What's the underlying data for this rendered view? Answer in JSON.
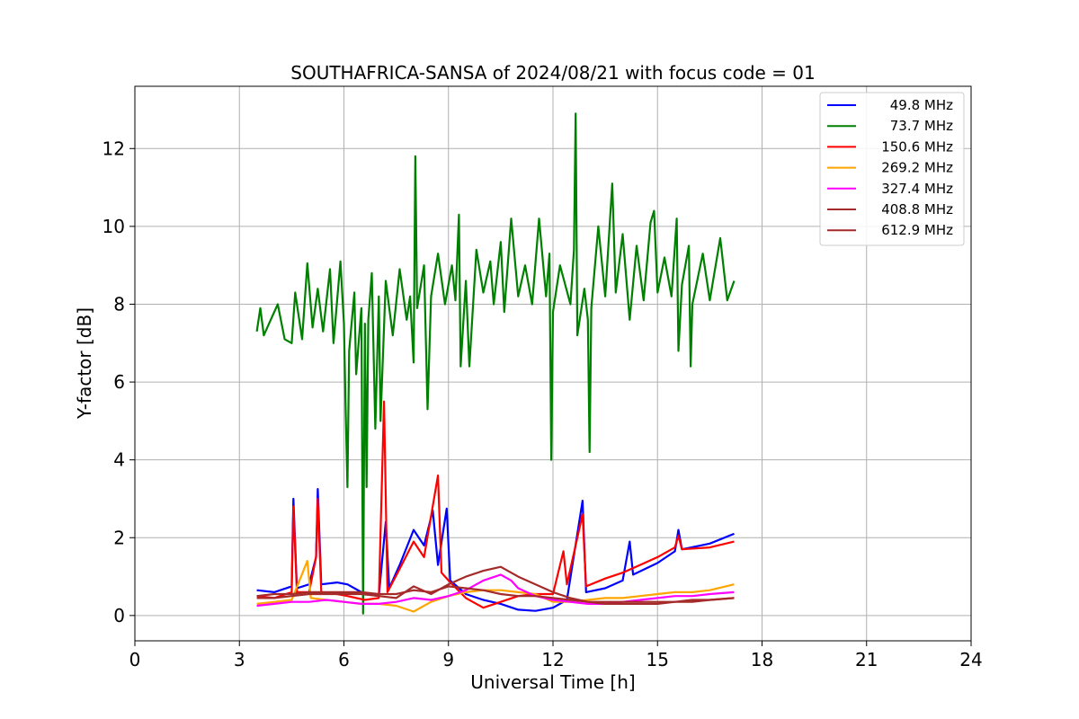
{
  "chart_data": {
    "type": "line",
    "title": "SOUTHAFRICA-SANSA of 2024/08/21 with focus code = 01",
    "xlabel": "Universal Time [h]",
    "ylabel": "Y-factor [dB]",
    "xlim": [
      0,
      24
    ],
    "ylim": [
      -0.65,
      13.6
    ],
    "xticks": [
      0,
      3,
      6,
      9,
      12,
      15,
      18,
      21,
      24
    ],
    "xtick_labels": [
      "0",
      "3",
      "6",
      "9",
      "12",
      "15",
      "18",
      "21",
      "24"
    ],
    "yticks": [
      0,
      2,
      4,
      6,
      8,
      10,
      12
    ],
    "ytick_labels": [
      "0",
      "2",
      "4",
      "6",
      "8",
      "10",
      "12"
    ],
    "grid": true,
    "legend_position": "top-right",
    "series": [
      {
        "name": "49.8 MHz",
        "color": "#0000ff",
        "points": [
          [
            3.5,
            0.65
          ],
          [
            4.0,
            0.6
          ],
          [
            4.5,
            0.75
          ],
          [
            4.55,
            3.0
          ],
          [
            4.65,
            0.7
          ],
          [
            5.0,
            0.8
          ],
          [
            5.2,
            1.5
          ],
          [
            5.25,
            3.25
          ],
          [
            5.35,
            0.8
          ],
          [
            5.8,
            0.85
          ],
          [
            6.1,
            0.8
          ],
          [
            6.6,
            0.55
          ],
          [
            7.0,
            0.5
          ],
          [
            7.2,
            2.4
          ],
          [
            7.3,
            0.7
          ],
          [
            7.6,
            1.3
          ],
          [
            8.0,
            2.2
          ],
          [
            8.3,
            1.8
          ],
          [
            8.55,
            2.7
          ],
          [
            8.7,
            1.3
          ],
          [
            8.95,
            2.75
          ],
          [
            9.05,
            0.9
          ],
          [
            9.5,
            0.55
          ],
          [
            10.0,
            0.4
          ],
          [
            10.5,
            0.3
          ],
          [
            11.0,
            0.15
          ],
          [
            11.5,
            0.12
          ],
          [
            12.0,
            0.2
          ],
          [
            12.4,
            0.4
          ],
          [
            12.85,
            2.95
          ],
          [
            12.95,
            0.6
          ],
          [
            13.5,
            0.7
          ],
          [
            14.0,
            0.9
          ],
          [
            14.2,
            1.9
          ],
          [
            14.3,
            1.05
          ],
          [
            15.0,
            1.35
          ],
          [
            15.5,
            1.65
          ],
          [
            15.6,
            2.2
          ],
          [
            15.7,
            1.7
          ],
          [
            16.5,
            1.85
          ],
          [
            17.2,
            2.1
          ]
        ]
      },
      {
        "name": "73.7 MHz",
        "color": "#008000",
        "points": [
          [
            3.5,
            7.3
          ],
          [
            3.6,
            7.9
          ],
          [
            3.7,
            7.2
          ],
          [
            3.9,
            7.6
          ],
          [
            4.1,
            8.0
          ],
          [
            4.3,
            7.1
          ],
          [
            4.5,
            7.0
          ],
          [
            4.6,
            8.3
          ],
          [
            4.8,
            7.1
          ],
          [
            4.95,
            9.05
          ],
          [
            5.1,
            7.4
          ],
          [
            5.25,
            8.4
          ],
          [
            5.4,
            7.3
          ],
          [
            5.6,
            8.9
          ],
          [
            5.7,
            7.0
          ],
          [
            5.9,
            9.1
          ],
          [
            6.0,
            7.5
          ],
          [
            6.05,
            5.3
          ],
          [
            6.1,
            3.3
          ],
          [
            6.15,
            6.8
          ],
          [
            6.3,
            8.3
          ],
          [
            6.35,
            6.2
          ],
          [
            6.5,
            7.9
          ],
          [
            6.55,
            0.05
          ],
          [
            6.6,
            7.5
          ],
          [
            6.65,
            3.3
          ],
          [
            6.7,
            7.6
          ],
          [
            6.8,
            8.8
          ],
          [
            6.9,
            4.8
          ],
          [
            7.0,
            8.2
          ],
          [
            7.05,
            5.0
          ],
          [
            7.2,
            8.6
          ],
          [
            7.4,
            7.2
          ],
          [
            7.6,
            8.9
          ],
          [
            7.8,
            7.6
          ],
          [
            7.9,
            8.2
          ],
          [
            8.0,
            6.5
          ],
          [
            8.05,
            11.8
          ],
          [
            8.1,
            7.9
          ],
          [
            8.3,
            9.0
          ],
          [
            8.4,
            5.3
          ],
          [
            8.5,
            8.2
          ],
          [
            8.7,
            9.3
          ],
          [
            8.9,
            8.0
          ],
          [
            9.1,
            9.0
          ],
          [
            9.2,
            8.1
          ],
          [
            9.3,
            10.3
          ],
          [
            9.35,
            6.4
          ],
          [
            9.5,
            8.6
          ],
          [
            9.6,
            6.4
          ],
          [
            9.8,
            9.4
          ],
          [
            10.0,
            8.3
          ],
          [
            10.2,
            9.1
          ],
          [
            10.3,
            8.0
          ],
          [
            10.5,
            9.6
          ],
          [
            10.6,
            7.8
          ],
          [
            10.8,
            10.2
          ],
          [
            11.0,
            8.2
          ],
          [
            11.2,
            9.0
          ],
          [
            11.4,
            8.0
          ],
          [
            11.6,
            10.2
          ],
          [
            11.8,
            8.2
          ],
          [
            11.9,
            9.3
          ],
          [
            11.95,
            4.0
          ],
          [
            12.0,
            7.8
          ],
          [
            12.2,
            9.0
          ],
          [
            12.5,
            8.0
          ],
          [
            12.6,
            9.4
          ],
          [
            12.65,
            12.9
          ],
          [
            12.7,
            7.2
          ],
          [
            12.9,
            8.4
          ],
          [
            13.0,
            7.6
          ],
          [
            13.05,
            4.2
          ],
          [
            13.1,
            7.9
          ],
          [
            13.3,
            10.0
          ],
          [
            13.5,
            8.2
          ],
          [
            13.7,
            11.1
          ],
          [
            13.8,
            8.3
          ],
          [
            14.0,
            9.8
          ],
          [
            14.2,
            7.6
          ],
          [
            14.4,
            9.5
          ],
          [
            14.6,
            8.1
          ],
          [
            14.8,
            10.1
          ],
          [
            14.9,
            10.4
          ],
          [
            15.0,
            8.3
          ],
          [
            15.2,
            9.2
          ],
          [
            15.4,
            8.2
          ],
          [
            15.55,
            10.2
          ],
          [
            15.6,
            6.8
          ],
          [
            15.7,
            8.5
          ],
          [
            15.9,
            9.5
          ],
          [
            15.95,
            6.4
          ],
          [
            16.0,
            8.0
          ],
          [
            16.3,
            9.3
          ],
          [
            16.5,
            8.1
          ],
          [
            16.8,
            9.7
          ],
          [
            17.0,
            8.1
          ],
          [
            17.2,
            8.6
          ]
        ]
      },
      {
        "name": "150.6 MHz",
        "color": "#ff0000",
        "points": [
          [
            3.5,
            0.5
          ],
          [
            4.0,
            0.45
          ],
          [
            4.5,
            0.6
          ],
          [
            4.55,
            2.8
          ],
          [
            4.65,
            0.6
          ],
          [
            5.0,
            0.6
          ],
          [
            5.2,
            1.5
          ],
          [
            5.25,
            3.0
          ],
          [
            5.35,
            0.6
          ],
          [
            5.8,
            0.55
          ],
          [
            6.1,
            0.5
          ],
          [
            6.6,
            0.4
          ],
          [
            7.0,
            0.45
          ],
          [
            7.15,
            5.5
          ],
          [
            7.25,
            0.6
          ],
          [
            7.6,
            1.2
          ],
          [
            8.0,
            1.9
          ],
          [
            8.3,
            1.5
          ],
          [
            8.7,
            3.6
          ],
          [
            8.8,
            1.1
          ],
          [
            9.0,
            0.9
          ],
          [
            9.5,
            0.45
          ],
          [
            10.0,
            0.2
          ],
          [
            10.5,
            0.35
          ],
          [
            11.0,
            0.5
          ],
          [
            11.5,
            0.55
          ],
          [
            12.0,
            0.55
          ],
          [
            12.3,
            1.65
          ],
          [
            12.4,
            0.8
          ],
          [
            12.85,
            2.6
          ],
          [
            12.95,
            0.75
          ],
          [
            13.5,
            0.95
          ],
          [
            14.0,
            1.1
          ],
          [
            14.5,
            1.3
          ],
          [
            15.0,
            1.5
          ],
          [
            15.5,
            1.75
          ],
          [
            15.6,
            2.05
          ],
          [
            15.7,
            1.7
          ],
          [
            16.5,
            1.75
          ],
          [
            17.2,
            1.9
          ]
        ]
      },
      {
        "name": "269.2 MHz",
        "color": "#ffa500",
        "points": [
          [
            3.5,
            0.3
          ],
          [
            4.0,
            0.35
          ],
          [
            4.5,
            0.4
          ],
          [
            4.95,
            1.4
          ],
          [
            5.05,
            0.45
          ],
          [
            5.5,
            0.4
          ],
          [
            6.0,
            0.35
          ],
          [
            6.5,
            0.3
          ],
          [
            7.0,
            0.3
          ],
          [
            7.5,
            0.25
          ],
          [
            8.0,
            0.1
          ],
          [
            8.5,
            0.35
          ],
          [
            9.0,
            0.5
          ],
          [
            9.5,
            0.6
          ],
          [
            10.0,
            0.65
          ],
          [
            10.5,
            0.65
          ],
          [
            11.0,
            0.6
          ],
          [
            11.5,
            0.55
          ],
          [
            12.0,
            0.35
          ],
          [
            12.5,
            0.35
          ],
          [
            13.0,
            0.4
          ],
          [
            13.5,
            0.45
          ],
          [
            14.0,
            0.45
          ],
          [
            14.5,
            0.5
          ],
          [
            15.0,
            0.55
          ],
          [
            15.5,
            0.6
          ],
          [
            16.0,
            0.6
          ],
          [
            16.5,
            0.65
          ],
          [
            17.2,
            0.8
          ]
        ]
      },
      {
        "name": "327.4 MHz",
        "color": "#ff00ff",
        "points": [
          [
            3.5,
            0.25
          ],
          [
            4.0,
            0.3
          ],
          [
            4.5,
            0.35
          ],
          [
            5.0,
            0.35
          ],
          [
            5.5,
            0.4
          ],
          [
            6.0,
            0.35
          ],
          [
            6.5,
            0.3
          ],
          [
            7.0,
            0.3
          ],
          [
            7.5,
            0.35
          ],
          [
            8.0,
            0.45
          ],
          [
            8.5,
            0.4
          ],
          [
            9.0,
            0.5
          ],
          [
            9.5,
            0.65
          ],
          [
            10.0,
            0.9
          ],
          [
            10.5,
            1.05
          ],
          [
            10.8,
            0.9
          ],
          [
            11.0,
            0.7
          ],
          [
            11.5,
            0.5
          ],
          [
            12.0,
            0.4
          ],
          [
            12.5,
            0.35
          ],
          [
            13.0,
            0.3
          ],
          [
            13.5,
            0.3
          ],
          [
            14.0,
            0.35
          ],
          [
            14.5,
            0.4
          ],
          [
            15.0,
            0.45
          ],
          [
            15.5,
            0.5
          ],
          [
            16.0,
            0.5
          ],
          [
            16.5,
            0.55
          ],
          [
            17.2,
            0.6
          ]
        ]
      },
      {
        "name": "408.8 MHz",
        "color": "#a52a2a",
        "points": [
          [
            3.5,
            0.45
          ],
          [
            4.0,
            0.45
          ],
          [
            4.5,
            0.5
          ],
          [
            5.0,
            0.55
          ],
          [
            5.5,
            0.55
          ],
          [
            6.0,
            0.55
          ],
          [
            6.5,
            0.55
          ],
          [
            7.0,
            0.5
          ],
          [
            7.5,
            0.45
          ],
          [
            8.0,
            0.75
          ],
          [
            8.5,
            0.55
          ],
          [
            9.0,
            0.8
          ],
          [
            9.5,
            1.0
          ],
          [
            10.0,
            1.15
          ],
          [
            10.5,
            1.25
          ],
          [
            11.0,
            1.0
          ],
          [
            11.5,
            0.8
          ],
          [
            12.0,
            0.6
          ],
          [
            12.5,
            0.45
          ],
          [
            13.0,
            0.35
          ],
          [
            13.5,
            0.3
          ],
          [
            14.0,
            0.3
          ],
          [
            14.5,
            0.3
          ],
          [
            15.0,
            0.3
          ],
          [
            15.5,
            0.35
          ],
          [
            16.0,
            0.35
          ],
          [
            16.5,
            0.4
          ],
          [
            17.2,
            0.45
          ]
        ]
      },
      {
        "name": "612.9 MHz",
        "color": "#a52a2a",
        "points": [
          [
            3.5,
            0.5
          ],
          [
            4.0,
            0.55
          ],
          [
            4.5,
            0.55
          ],
          [
            5.0,
            0.6
          ],
          [
            5.5,
            0.6
          ],
          [
            6.0,
            0.6
          ],
          [
            6.5,
            0.6
          ],
          [
            7.0,
            0.55
          ],
          [
            7.5,
            0.55
          ],
          [
            8.0,
            0.65
          ],
          [
            8.5,
            0.6
          ],
          [
            9.0,
            0.75
          ],
          [
            9.5,
            0.7
          ],
          [
            10.0,
            0.65
          ],
          [
            10.5,
            0.55
          ],
          [
            11.0,
            0.5
          ],
          [
            11.5,
            0.5
          ],
          [
            12.0,
            0.45
          ],
          [
            12.5,
            0.4
          ],
          [
            13.0,
            0.35
          ],
          [
            13.5,
            0.35
          ],
          [
            14.0,
            0.35
          ],
          [
            14.5,
            0.35
          ],
          [
            15.0,
            0.35
          ],
          [
            15.5,
            0.35
          ],
          [
            16.0,
            0.4
          ],
          [
            16.5,
            0.4
          ],
          [
            17.2,
            0.45
          ]
        ]
      }
    ]
  }
}
